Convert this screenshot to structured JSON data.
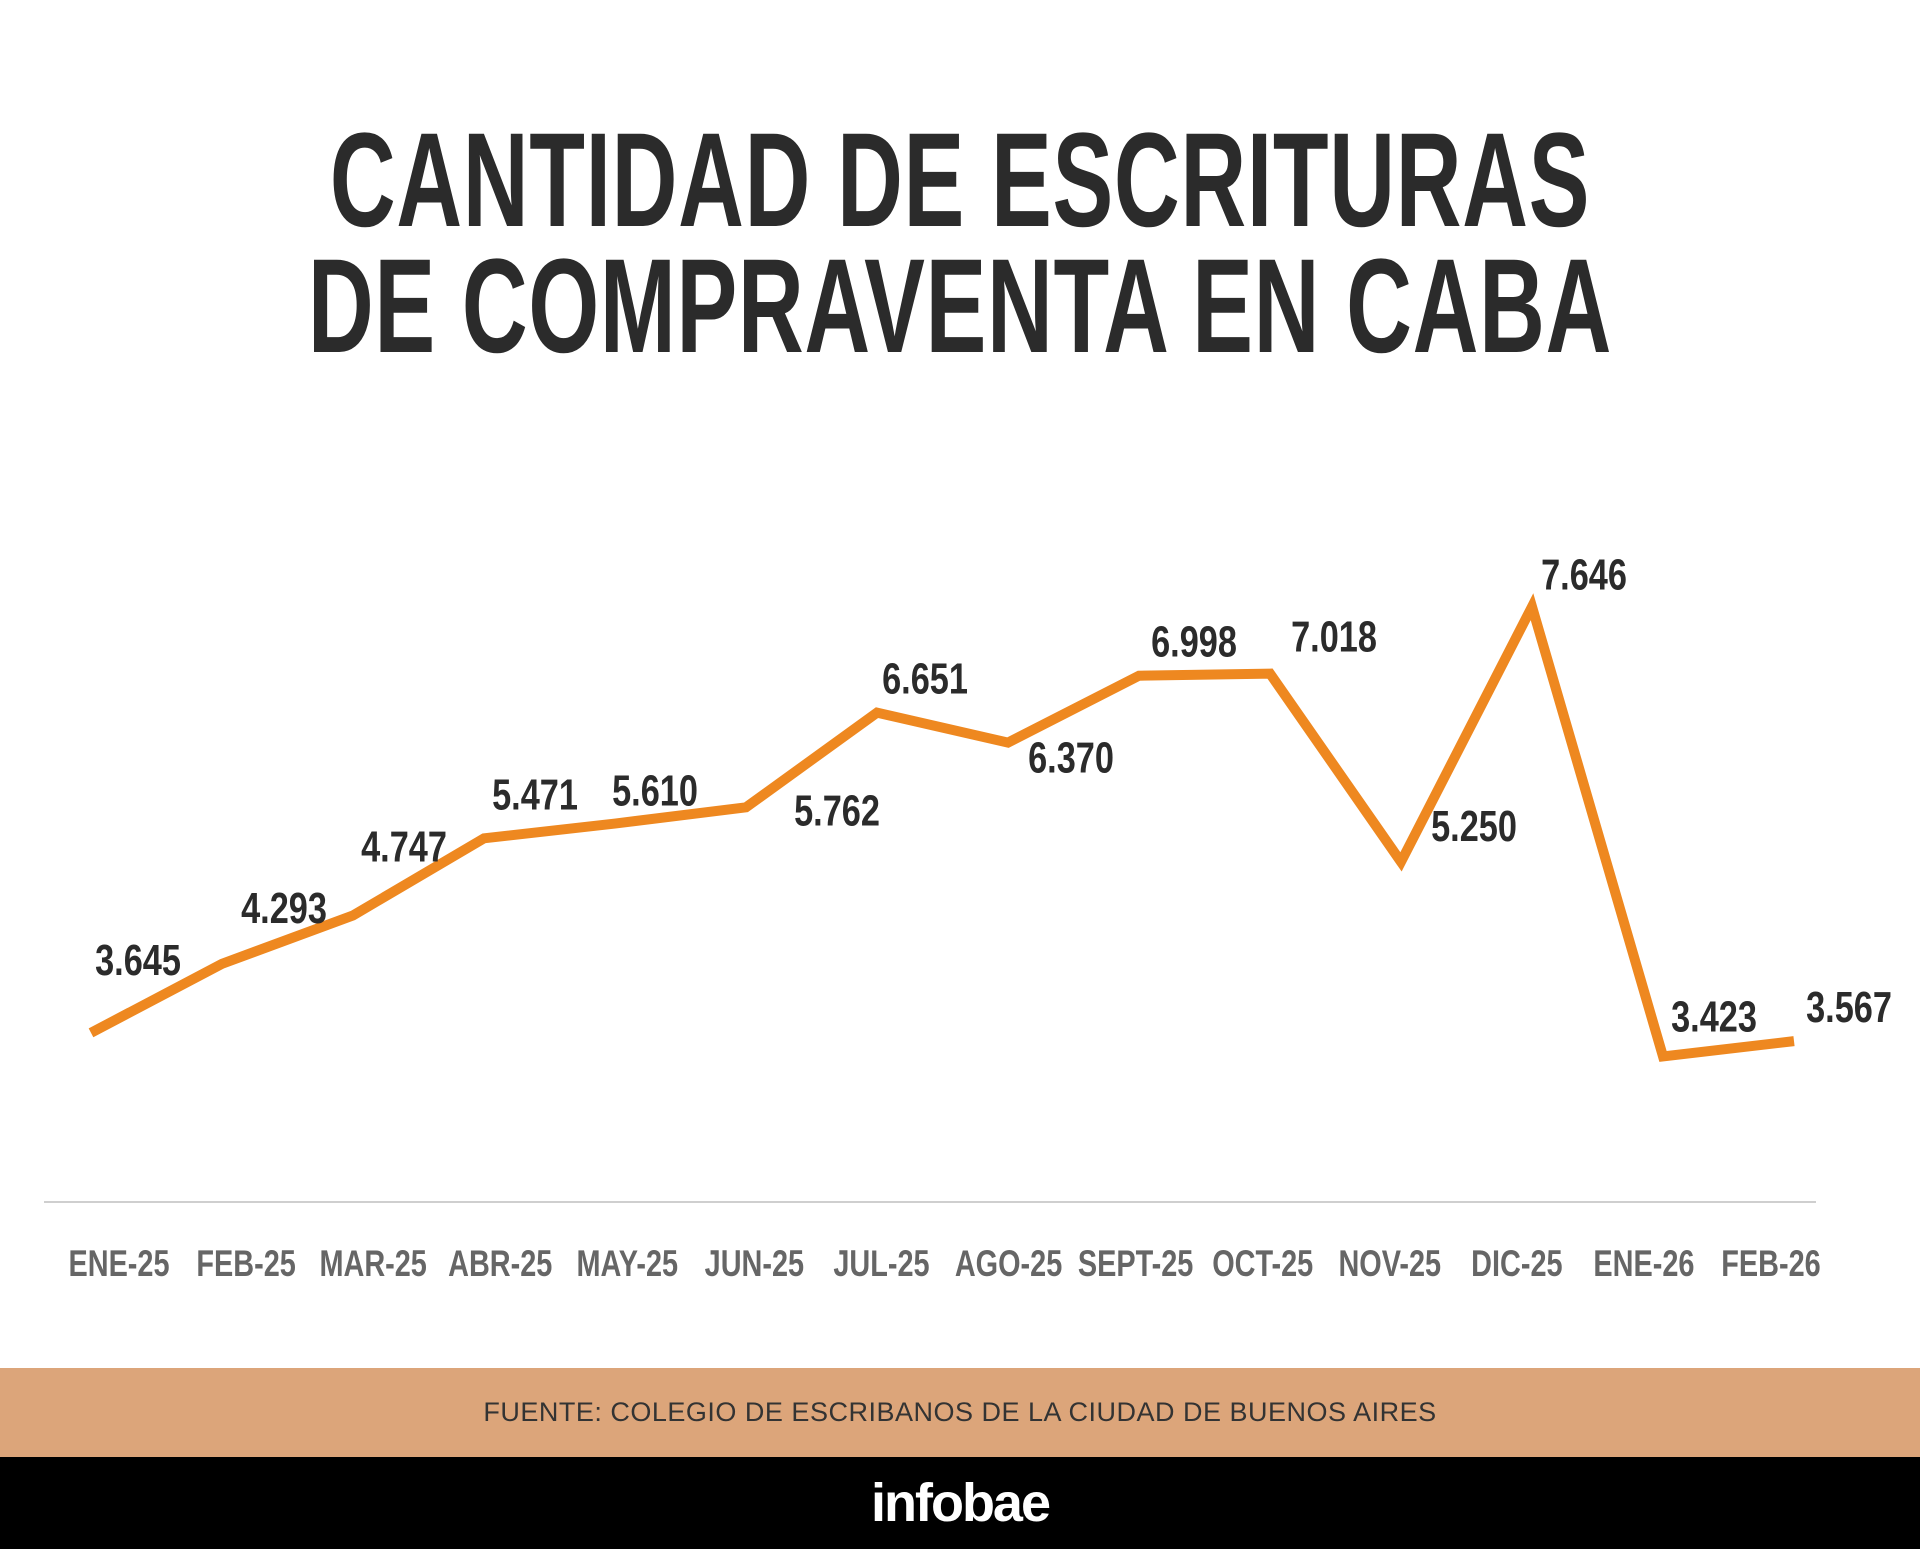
{
  "title": {
    "line1": "CANTIDAD DE ESCRITURAS",
    "line2": "DE COMPRAVENTA EN CABA"
  },
  "chart_data": {
    "type": "line",
    "title": "CANTIDAD DE ESCRITURAS DE COMPRAVENTA EN CABA",
    "xlabel": "",
    "ylabel": "",
    "categories": [
      "ENE-25",
      "FEB-25",
      "MAR-25",
      "ABR-25",
      "MAY-25",
      "JUN-25",
      "JUL-25",
      "AGO-25",
      "SEPT-25",
      "OCT-25",
      "NOV-25",
      "DIC-25",
      "ENE-26",
      "FEB-26"
    ],
    "values": [
      3645,
      4293,
      4747,
      5471,
      5610,
      5762,
      6651,
      6370,
      6998,
      7018,
      5250,
      7646,
      3423,
      3567
    ],
    "data_labels": [
      "3.645",
      "4.293",
      "4.747",
      "5.471",
      "5.610",
      "5.762",
      "6.651",
      "6.370",
      "6.998",
      "7.018",
      "5.250",
      "7.646",
      "3.423",
      "3.567"
    ],
    "ylim": [
      400,
      9000
    ],
    "grid": false,
    "legend": "none",
    "line_color": "#ee8820",
    "label_color": "#2b2b2b",
    "tick_color": "#666666"
  },
  "footer": {
    "source": "FUENTE: COLEGIO DE ESCRIBANOS DE LA CIUDAD DE BUENOS AIRES",
    "band_color": "#dca57a",
    "brand": "infobae"
  }
}
